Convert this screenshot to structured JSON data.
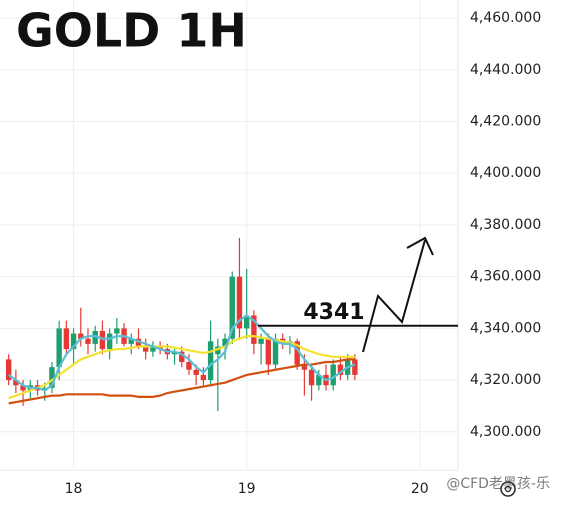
{
  "chart_data": {
    "type": "candlestick",
    "title": "GOLD 1H",
    "x": [
      15,
      16,
      17,
      18,
      19,
      20,
      21,
      22,
      23,
      24,
      25,
      26,
      27,
      28,
      29,
      30,
      31,
      32,
      33,
      34,
      35,
      36,
      37,
      38,
      39,
      40,
      41,
      42,
      43,
      44,
      45,
      46,
      47,
      48,
      49,
      50,
      51,
      52,
      53,
      54,
      55,
      56,
      57,
      58,
      59,
      60,
      61,
      62,
      63
    ],
    "open": [
      4328,
      4320,
      4318,
      4316,
      4318,
      4316,
      4317,
      4325,
      4340,
      4332,
      4338,
      4336,
      4334,
      4339,
      4332,
      4338,
      4340,
      4334,
      4336,
      4333,
      4331,
      4333,
      4332,
      4330,
      4331,
      4327,
      4324,
      4322,
      4320,
      4330,
      4333,
      4336,
      4360,
      4340,
      4345,
      4334,
      4336,
      4326,
      4336,
      4334,
      4335,
      4326,
      4324,
      4318,
      4322,
      4318,
      4326,
      4322,
      4328
    ],
    "high": [
      4330,
      4324,
      4320,
      4320,
      4320,
      4319,
      4327,
      4343,
      4343,
      4340,
      4348,
      4340,
      4341,
      4343,
      4340,
      4344,
      4342,
      4338,
      4340,
      4336,
      4335,
      4335,
      4334,
      4333,
      4333,
      4330,
      4326,
      4325,
      4343,
      4336,
      4338,
      4362,
      4375,
      4363,
      4347,
      4338,
      4338,
      4338,
      4338,
      4337,
      4336,
      4330,
      4326,
      4324,
      4326,
      4328,
      4329,
      4330,
      4330
    ],
    "low": [
      4318,
      4315,
      4310,
      4313,
      4314,
      4312,
      4315,
      4320,
      4330,
      4326,
      4333,
      4330,
      4331,
      4330,
      4328,
      4334,
      4333,
      4330,
      4332,
      4328,
      4329,
      4330,
      4328,
      4326,
      4325,
      4322,
      4318,
      4318,
      4318,
      4308,
      4328,
      4334,
      4336,
      4336,
      4330,
      4326,
      4322,
      4324,
      4332,
      4330,
      4324,
      4314,
      4312,
      4316,
      4316,
      4316,
      4320,
      4320,
      4320
    ],
    "close": [
      4320,
      4318,
      4316,
      4318,
      4316,
      4317,
      4325,
      4340,
      4332,
      4338,
      4336,
      4334,
      4339,
      4332,
      4338,
      4340,
      4334,
      4336,
      4333,
      4331,
      4333,
      4332,
      4330,
      4331,
      4327,
      4324,
      4322,
      4320,
      4335,
      4333,
      4336,
      4360,
      4340,
      4345,
      4334,
      4336,
      4326,
      4336,
      4334,
      4335,
      4326,
      4324,
      4318,
      4322,
      4318,
      4326,
      4322,
      4328,
      4322
    ],
    "up_color": "#1f9e6e",
    "down_color": "#e53935",
    "series": [
      {
        "color": "#d2500f",
        "values": [
          4311,
          4311.5,
          4312,
          4312.5,
          4313,
          4313.5,
          4314,
          4314,
          4314.5,
          4314.5,
          4314.5,
          4314.5,
          4314.5,
          4314.5,
          4314,
          4314,
          4314,
          4314,
          4313.5,
          4313.5,
          4313.5,
          4314,
          4315,
          4315.5,
          4316,
          4316.5,
          4317,
          4317.5,
          4318,
          4318.5,
          4319,
          4320,
          4321,
          4322,
          4322.5,
          4323,
          4323.5,
          4324,
          4324.5,
          4325,
          4325.5,
          4326,
          4326,
          4326.5,
          4327,
          4327,
          4327.5,
          4328,
          4328
        ]
      },
      {
        "color": "#f5e12e",
        "values": [
          4313,
          4314,
          4315,
          4316,
          4317,
          4318,
          4320,
          4322,
          4324,
          4326,
          4328,
          4329,
          4330,
          4331,
          4331.5,
          4332,
          4332,
          4332.5,
          4333,
          4333,
          4333,
          4333,
          4333,
          4332.5,
          4332,
          4331.5,
          4331,
          4330.5,
          4331,
          4332,
          4333,
          4335,
          4336,
          4337,
          4337,
          4336.5,
          4336,
          4335.5,
          4335,
          4334.5,
          4333.5,
          4332,
          4331,
          4330,
          4329.5,
          4329,
          4329,
          4329,
          4329
        ]
      },
      {
        "color": "#5bbfd6",
        "values": [
          4322,
          4320,
          4318,
          4317,
          4317,
          4316,
          4318,
          4325,
          4330,
          4333,
          4336,
          4337,
          4337,
          4336,
          4336,
          4337,
          4337,
          4336,
          4335,
          4334,
          4333,
          4332,
          4331,
          4331,
          4330,
          4328,
          4325,
          4323,
          4326,
          4328,
          4331,
          4340,
          4343,
          4345,
          4343,
          4340,
          4337,
          4335,
          4334,
          4334,
          4332,
          4328,
          4325,
          4322,
          4320,
          4321,
          4323,
          4325,
          4326
        ]
      }
    ],
    "level": 4341,
    "xlim": [
      13.8,
      77.3
    ],
    "ylim": [
      4286,
      4467
    ],
    "xticks": [
      {
        "value": 24,
        "label": "18"
      },
      {
        "value": 48,
        "label": "19"
      },
      {
        "value": 72,
        "label": "20"
      }
    ],
    "yticks": [
      {
        "value": 4300,
        "label": "4,300.000"
      },
      {
        "value": 4320,
        "label": "4,320.000"
      },
      {
        "value": 4340,
        "label": "4,340.000"
      },
      {
        "value": 4360,
        "label": "4,360.000"
      },
      {
        "value": 4380,
        "label": "4,380.000"
      },
      {
        "value": 4400,
        "label": "4,400.000"
      },
      {
        "value": 4420,
        "label": "4,420.000"
      },
      {
        "value": 4440,
        "label": "4,440.000"
      },
      {
        "value": 4460,
        "label": "4,460.000"
      }
    ],
    "grid": true,
    "watermark": "@CFD老黑孩-乐"
  }
}
